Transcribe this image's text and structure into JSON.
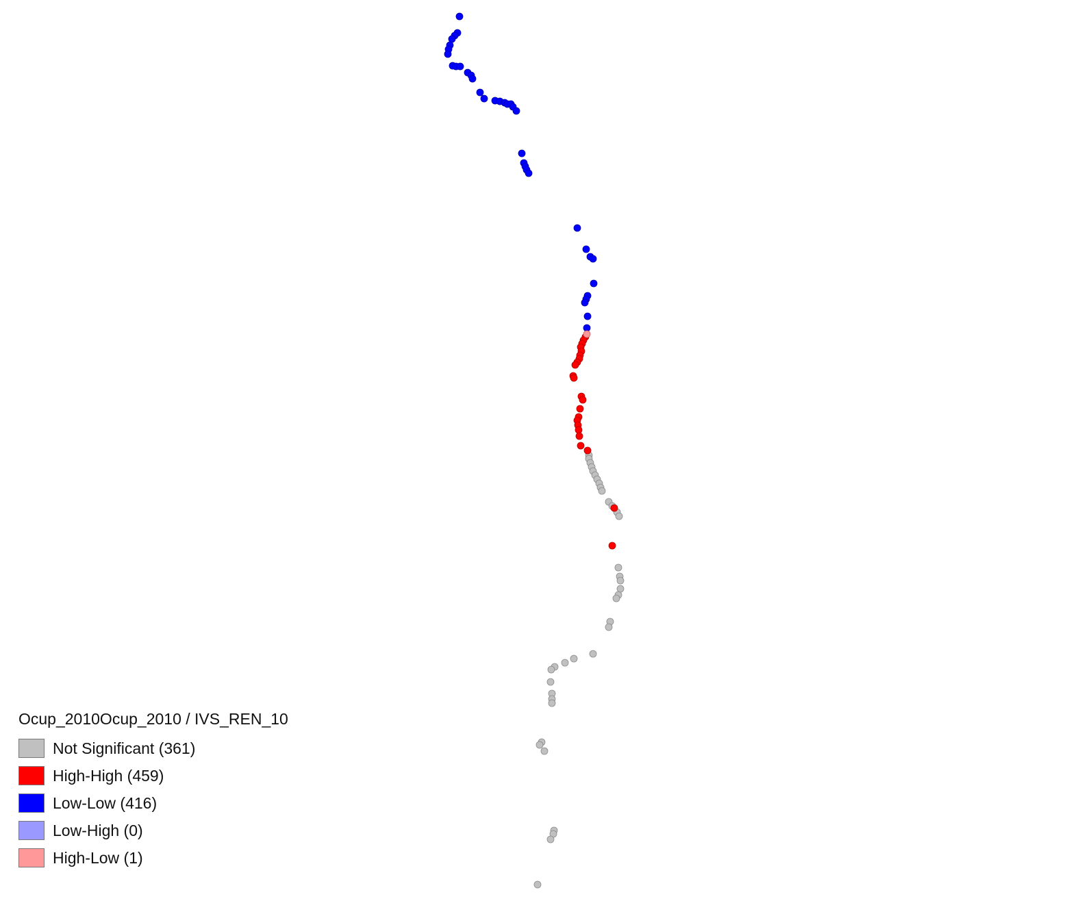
{
  "legend": {
    "title": "Ocup_2010Ocup_2010 / IVS_REN_10",
    "items": [
      {
        "key": "not_significant",
        "label": "Not Significant (361)",
        "color": "#c0c0c0",
        "stroke": "#8a8a8a"
      },
      {
        "key": "high_high",
        "label": "High-High (459)",
        "color": "#ff0000",
        "stroke": "#b00000"
      },
      {
        "key": "low_low",
        "label": "Low-Low (416)",
        "color": "#0000ff",
        "stroke": "#0000a8"
      },
      {
        "key": "low_high",
        "label": "Low-High (0)",
        "color": "#9999ff",
        "stroke": "#6666cc"
      },
      {
        "key": "high_low",
        "label": "High-Low (1)",
        "color": "#ff9999",
        "stroke": "#cc6666"
      }
    ]
  }
}
